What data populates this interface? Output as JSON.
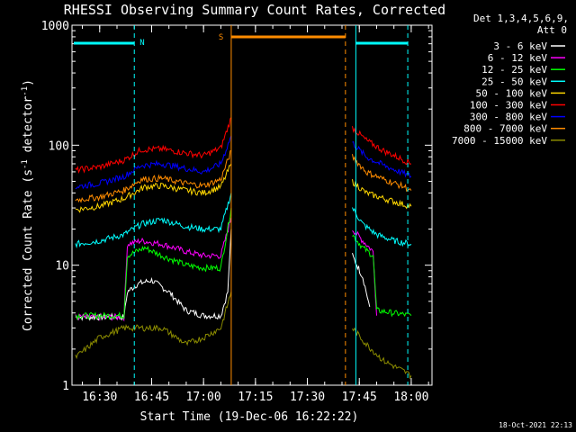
{
  "chart_data": {
    "type": "line",
    "title": "RHESSI Observing Summary Count Rates, Corrected",
    "xlabel": "Start Time (19-Dec-06 16:22:22)",
    "ylabel_main": "Corrected Count Rate (s",
    "ylabel_sup1": "-1",
    "ylabel_mid": " detector",
    "ylabel_sup2": "-1",
    "ylabel_end": ")",
    "y_scale": "log",
    "ylim": [
      1,
      1000
    ],
    "xlim_minutes": [
      16.4,
      18.1
    ],
    "x_ticks": [
      "16:30",
      "16:45",
      "17:00",
      "17:15",
      "17:30",
      "17:45",
      "18:00"
    ],
    "y_ticks": [
      "1",
      "10",
      "100",
      "1000"
    ],
    "legend": {
      "header1": "Det 1,3,4,5,6,9,",
      "header2": "Att 0",
      "placement": "right"
    },
    "annotations": [
      {
        "label": "N",
        "color": "#00ffff"
      },
      {
        "label": "S",
        "color": "#ff8c00"
      }
    ],
    "timestamp": "18-Oct-2021 22:13",
    "series": [
      {
        "name": "3 - 6 keV",
        "color": "#ffffff",
        "points": [
          [
            "16:23",
            3.7
          ],
          [
            "16:30",
            3.7
          ],
          [
            "16:37",
            3.7
          ],
          [
            "16:38",
            6
          ],
          [
            "16:41",
            7
          ],
          [
            "16:45",
            7.5
          ],
          [
            "16:50",
            6
          ],
          [
            "16:55",
            4.2
          ],
          [
            "17:00",
            3.8
          ],
          [
            "17:05",
            3.8
          ],
          [
            "17:07",
            6
          ],
          [
            "17:08",
            20
          ],
          [
            "17:43",
            12
          ],
          [
            "17:46",
            8
          ],
          [
            "17:48",
            4.5
          ]
        ]
      },
      {
        "name": "6 - 12 keV",
        "color": "#ff00ff",
        "points": [
          [
            "16:23",
            3.7
          ],
          [
            "16:30",
            3.7
          ],
          [
            "16:37",
            3.7
          ],
          [
            "16:38",
            15
          ],
          [
            "16:42",
            16
          ],
          [
            "16:48",
            15
          ],
          [
            "16:55",
            13
          ],
          [
            "17:00",
            12
          ],
          [
            "17:05",
            12
          ],
          [
            "17:08",
            25
          ],
          [
            "17:43",
            20
          ],
          [
            "17:46",
            16
          ],
          [
            "17:49",
            13
          ],
          [
            "17:50",
            3.8
          ]
        ]
      },
      {
        "name": "12 - 25 keV",
        "color": "#00ff00",
        "points": [
          [
            "16:23",
            3.8
          ],
          [
            "16:30",
            3.8
          ],
          [
            "16:37",
            3.8
          ],
          [
            "16:38",
            12
          ],
          [
            "16:43",
            14
          ],
          [
            "16:48",
            12
          ],
          [
            "16:55",
            10
          ],
          [
            "17:00",
            9.5
          ],
          [
            "17:05",
            9.5
          ],
          [
            "17:08",
            30
          ],
          [
            "17:43",
            18
          ],
          [
            "17:46",
            14
          ],
          [
            "17:49",
            12
          ],
          [
            "17:50",
            4.2
          ],
          [
            "18:00",
            3.8
          ]
        ]
      },
      {
        "name": "25 - 50 keV",
        "color": "#00ffff",
        "points": [
          [
            "16:23",
            15
          ],
          [
            "16:30",
            16
          ],
          [
            "16:37",
            18
          ],
          [
            "16:42",
            22
          ],
          [
            "16:48",
            24
          ],
          [
            "16:55",
            21
          ],
          [
            "17:00",
            20
          ],
          [
            "17:05",
            20
          ],
          [
            "17:08",
            40
          ],
          [
            "17:43",
            30
          ],
          [
            "17:46",
            22
          ],
          [
            "17:50",
            18
          ],
          [
            "17:55",
            16
          ],
          [
            "18:00",
            15
          ]
        ]
      },
      {
        "name": "50 - 100 keV",
        "color": "#ffd700",
        "points": [
          [
            "16:23",
            29
          ],
          [
            "16:30",
            31
          ],
          [
            "16:37",
            36
          ],
          [
            "16:43",
            45
          ],
          [
            "16:48",
            46
          ],
          [
            "16:55",
            42
          ],
          [
            "17:00",
            40
          ],
          [
            "17:05",
            45
          ],
          [
            "17:08",
            70
          ],
          [
            "17:43",
            50
          ],
          [
            "17:47",
            40
          ],
          [
            "17:52",
            36
          ],
          [
            "17:58",
            32
          ],
          [
            "18:00",
            31
          ]
        ]
      },
      {
        "name": "100 - 300 keV",
        "color": "#ff0000",
        "points": [
          [
            "16:23",
            62
          ],
          [
            "16:30",
            66
          ],
          [
            "16:37",
            75
          ],
          [
            "16:42",
            92
          ],
          [
            "16:48",
            93
          ],
          [
            "16:55",
            86
          ],
          [
            "17:00",
            82
          ],
          [
            "17:05",
            95
          ],
          [
            "17:08",
            170
          ],
          [
            "17:43",
            140
          ],
          [
            "17:47",
            110
          ],
          [
            "17:52",
            90
          ],
          [
            "17:58",
            75
          ],
          [
            "18:00",
            70
          ]
        ]
      },
      {
        "name": "300 - 800 keV",
        "color": "#0000ff",
        "points": [
          [
            "16:23",
            45
          ],
          [
            "16:30",
            48
          ],
          [
            "16:37",
            55
          ],
          [
            "16:42",
            68
          ],
          [
            "16:48",
            70
          ],
          [
            "16:55",
            64
          ],
          [
            "17:00",
            60
          ],
          [
            "17:05",
            70
          ],
          [
            "17:08",
            120
          ],
          [
            "17:43",
            105
          ],
          [
            "17:47",
            80
          ],
          [
            "17:52",
            68
          ],
          [
            "17:58",
            58
          ],
          [
            "18:00",
            55
          ]
        ]
      },
      {
        "name": "800 - 7000 keV",
        "color": "#ff8c00",
        "points": [
          [
            "16:23",
            35
          ],
          [
            "16:30",
            37
          ],
          [
            "16:37",
            42
          ],
          [
            "16:42",
            52
          ],
          [
            "16:48",
            53
          ],
          [
            "16:55",
            48
          ],
          [
            "17:00",
            46
          ],
          [
            "17:05",
            52
          ],
          [
            "17:08",
            90
          ],
          [
            "17:43",
            80
          ],
          [
            "17:47",
            60
          ],
          [
            "17:52",
            52
          ],
          [
            "17:58",
            45
          ],
          [
            "18:00",
            42
          ]
        ]
      },
      {
        "name": "7000 - 15000 keV",
        "color": "#8b8b00",
        "points": [
          [
            "16:23",
            1.7
          ],
          [
            "16:30",
            2.5
          ],
          [
            "16:37",
            3
          ],
          [
            "16:42",
            3
          ],
          [
            "16:48",
            3
          ],
          [
            "16:55",
            2.2
          ],
          [
            "17:00",
            2.5
          ],
          [
            "17:05",
            3
          ],
          [
            "17:08",
            6
          ],
          [
            "17:43",
            3
          ],
          [
            "17:47",
            2.2
          ],
          [
            "17:52",
            1.6
          ],
          [
            "17:58",
            1.3
          ],
          [
            "18:00",
            1.2
          ]
        ]
      }
    ]
  }
}
